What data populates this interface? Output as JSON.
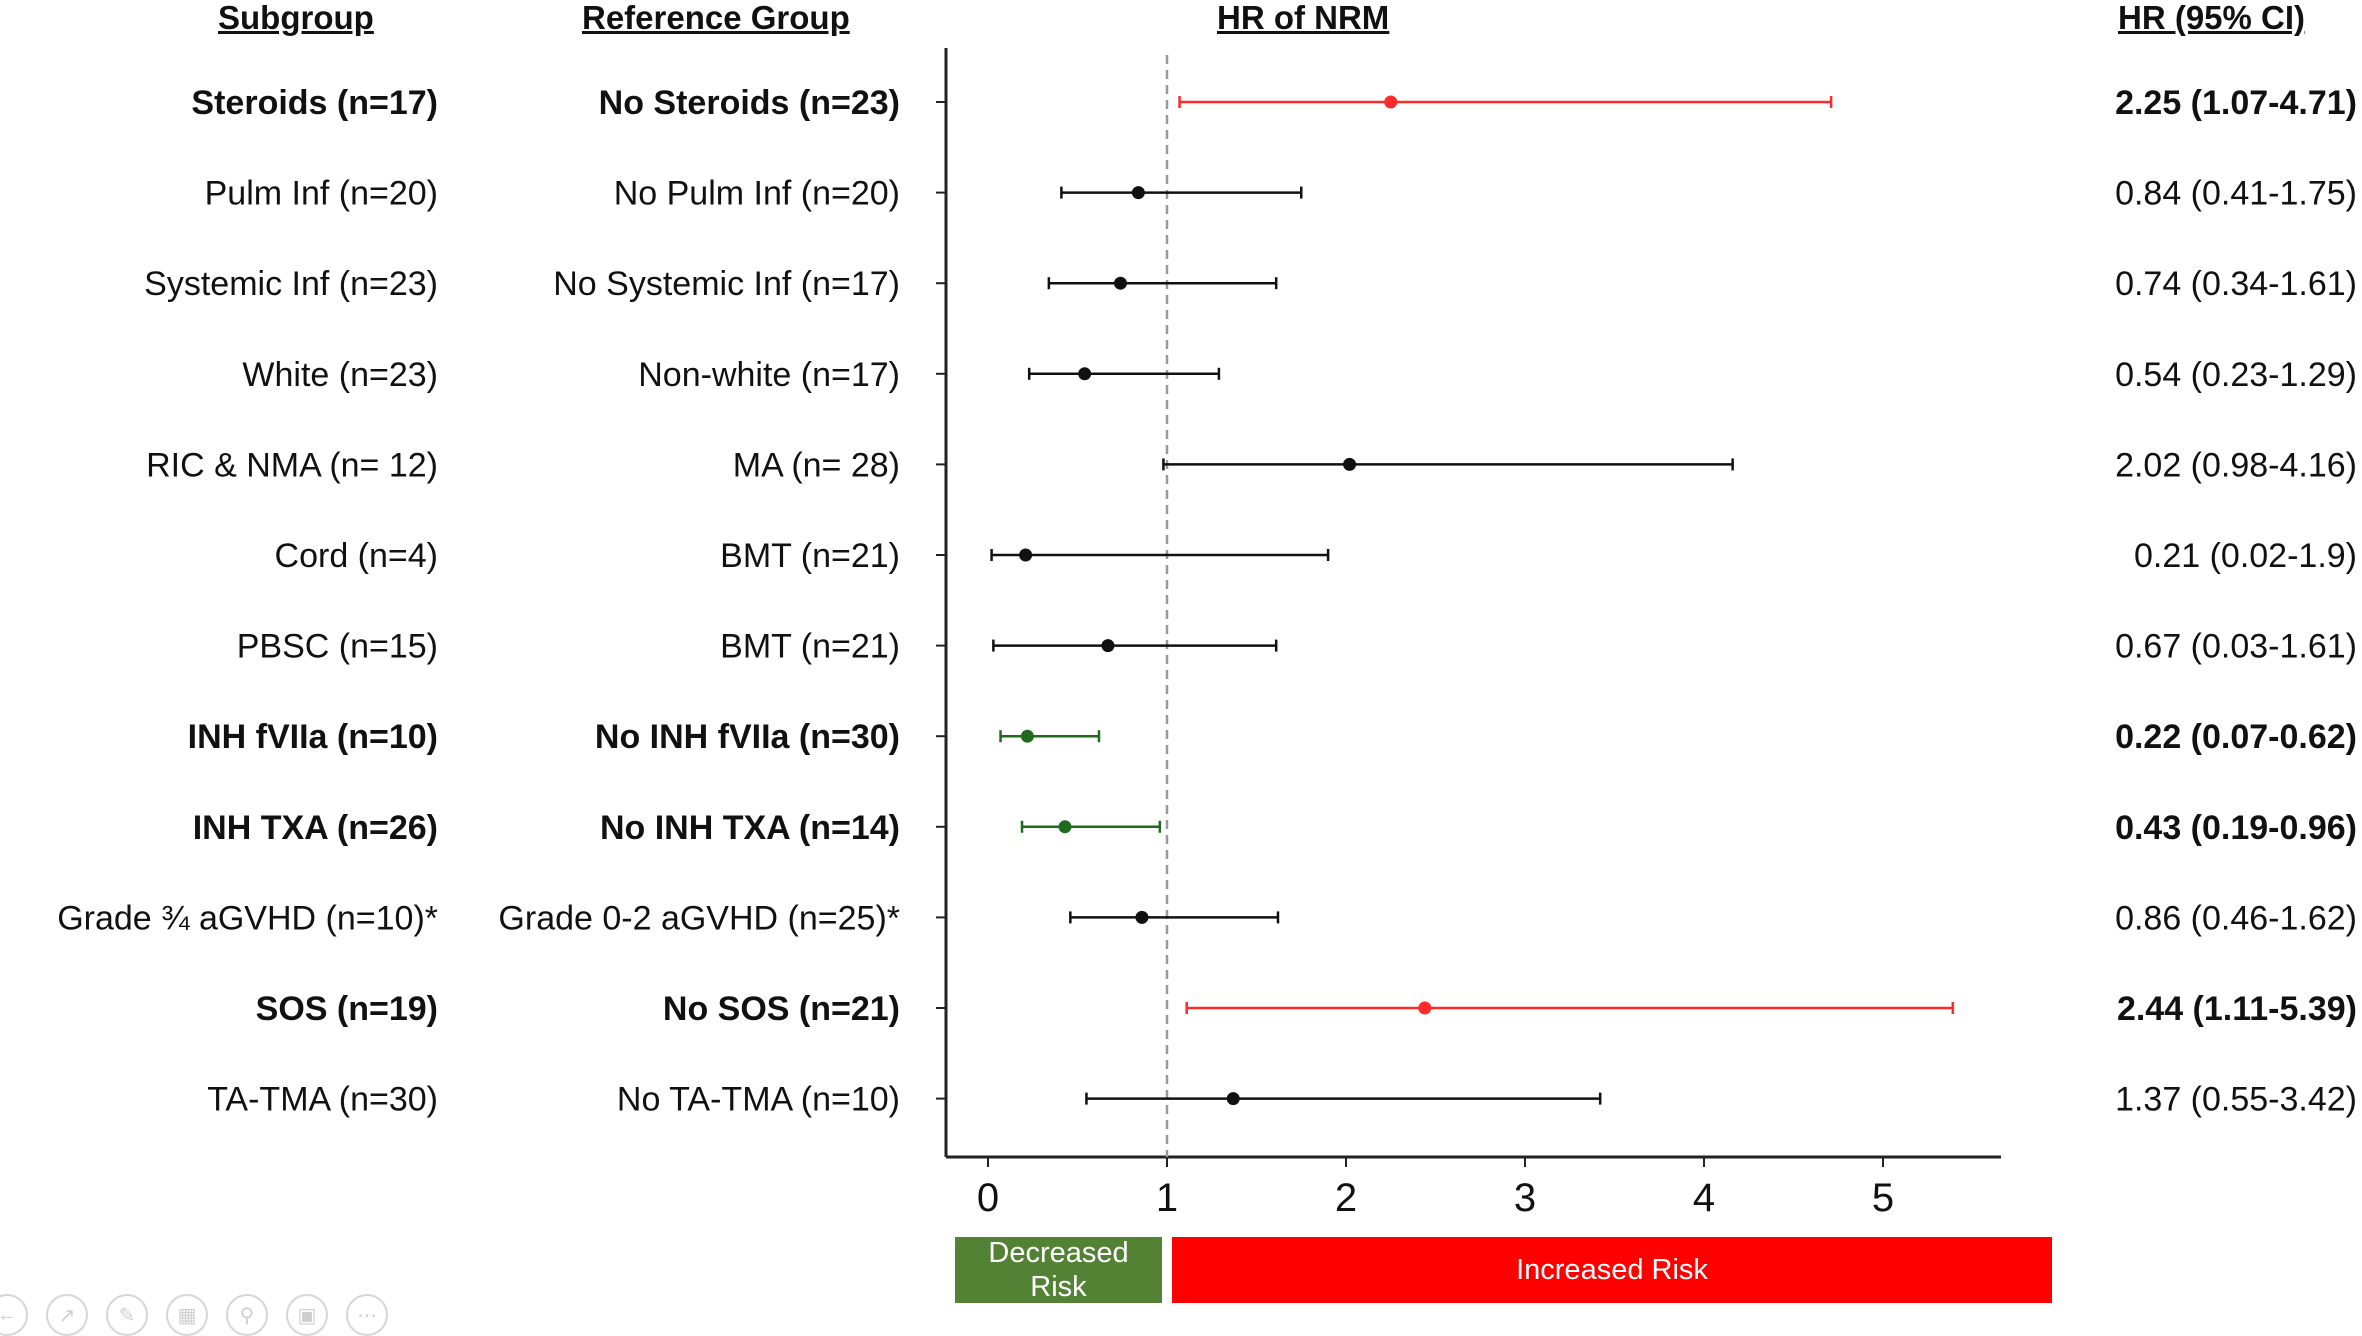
{
  "headers": {
    "subgroup": "Subgroup",
    "reference": "Reference Group",
    "hr_nrm": "HR of NRM",
    "hr_ci": "HR (95% CI)"
  },
  "bands": {
    "decreased_line1": "Decreased",
    "decreased_line2": "Risk",
    "increased": "Increased Risk",
    "decreased_color": "#548235",
    "increased_color": "#ff0000"
  },
  "colors": {
    "neutral": "#111111",
    "increased": "#ff2a2a",
    "decreased": "#1e6b1e",
    "reference_line": "#999999"
  },
  "chart_data": {
    "type": "forest",
    "title": "HR of NRM",
    "xlabel": "",
    "ylabel": "",
    "xlim": [
      -0.25,
      5.65
    ],
    "xticks": [
      0,
      1,
      2,
      3,
      4,
      5
    ],
    "reference_line": 1,
    "grid": false,
    "rows": [
      {
        "subgroup": "Steroids (n=17)",
        "reference": "No Steroids (n=23)",
        "hr": 2.25,
        "lo": 1.07,
        "hi": 4.71,
        "ci_text": "2.25 (1.07-4.71)",
        "bold": true,
        "color": "increased"
      },
      {
        "subgroup": "Pulm Inf (n=20)",
        "reference": "No Pulm Inf (n=20)",
        "hr": 0.84,
        "lo": 0.41,
        "hi": 1.75,
        "ci_text": "0.84 (0.41-1.75)",
        "bold": false,
        "color": "neutral"
      },
      {
        "subgroup": "Systemic Inf (n=23)",
        "reference": "No Systemic Inf (n=17)",
        "hr": 0.74,
        "lo": 0.34,
        "hi": 1.61,
        "ci_text": "0.74 (0.34-1.61)",
        "bold": false,
        "color": "neutral"
      },
      {
        "subgroup": "White (n=23)",
        "reference": "Non-white (n=17)",
        "hr": 0.54,
        "lo": 0.23,
        "hi": 1.29,
        "ci_text": "0.54 (0.23-1.29)",
        "bold": false,
        "color": "neutral"
      },
      {
        "subgroup": "RIC & NMA (n= 12)",
        "reference": "MA (n= 28)",
        "hr": 2.02,
        "lo": 0.98,
        "hi": 4.16,
        "ci_text": "2.02 (0.98-4.16)",
        "bold": false,
        "color": "neutral"
      },
      {
        "subgroup": "Cord (n=4)",
        "reference": "BMT (n=21)",
        "hr": 0.21,
        "lo": 0.02,
        "hi": 1.9,
        "ci_text": "0.21 (0.02-1.9)",
        "bold": false,
        "color": "neutral"
      },
      {
        "subgroup": "PBSC (n=15)",
        "reference": "BMT (n=21)",
        "hr": 0.67,
        "lo": 0.03,
        "hi": 1.61,
        "ci_text": "0.67 (0.03-1.61)",
        "bold": false,
        "color": "neutral"
      },
      {
        "subgroup": "INH fVIIa (n=10)",
        "reference": "No INH fVIIa (n=30)",
        "hr": 0.22,
        "lo": 0.07,
        "hi": 0.62,
        "ci_text": "0.22 (0.07-0.62)",
        "bold": true,
        "color": "decreased"
      },
      {
        "subgroup": "INH TXA (n=26)",
        "reference": "No INH TXA (n=14)",
        "hr": 0.43,
        "lo": 0.19,
        "hi": 0.96,
        "ci_text": "0.43 (0.19-0.96)",
        "bold": true,
        "color": "decreased"
      },
      {
        "subgroup": "Grade ¾ aGVHD (n=10)*",
        "reference": "Grade 0-2 aGVHD (n=25)*",
        "hr": 0.86,
        "lo": 0.46,
        "hi": 1.62,
        "ci_text": "0.86 (0.46-1.62)",
        "bold": false,
        "color": "neutral"
      },
      {
        "subgroup": "SOS (n=19)",
        "reference": "No SOS (n=21)",
        "hr": 2.44,
        "lo": 1.11,
        "hi": 5.39,
        "ci_text": "2.44 (1.11-5.39)",
        "bold": true,
        "color": "increased"
      },
      {
        "subgroup": "TA-TMA (n=30)",
        "reference": "No TA-TMA (n=10)",
        "hr": 1.37,
        "lo": 0.55,
        "hi": 3.42,
        "ci_text": "1.37 (0.55-3.42)",
        "bold": false,
        "color": "neutral"
      }
    ]
  },
  "toolbar": {
    "buttons": [
      "back-icon",
      "pointer-icon",
      "pen-icon",
      "grid-icon",
      "zoom-icon",
      "subtitle-icon",
      "more-icon"
    ]
  }
}
